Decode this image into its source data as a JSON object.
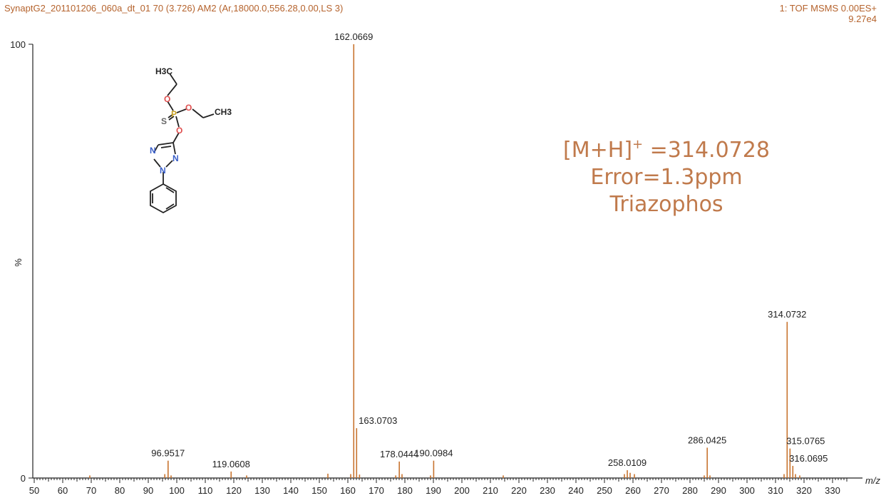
{
  "header": {
    "left": "SynaptG2_201101206_060a_dt_01 70 (3.726) AM2 (Ar,18000.0,556.28,0.00,LS 3)",
    "right_line1": "1: TOF MSMS 0.00ES+",
    "right_line2": "9.27e4"
  },
  "colors": {
    "peak": "#c8742f",
    "header": "#b5632d",
    "annotation": "#c07a4c",
    "axis": "#222222"
  },
  "annotation": {
    "line1_pre": "[M+H]",
    "line1_sup": "+",
    "line1_post": " =314.0728",
    "line2": "Error=1.3ppm",
    "line3": "Triazophos"
  },
  "structure": {
    "atoms": [
      "H3C",
      "CH3",
      "O",
      "O",
      "O",
      "P",
      "S",
      "N",
      "N",
      "N"
    ]
  },
  "chart_data": {
    "type": "bar",
    "xlabel": "m/z",
    "ylabel": "%",
    "xlim": [
      50,
      335
    ],
    "ylim": [
      0,
      100
    ],
    "x_ticks": [
      50,
      60,
      70,
      80,
      90,
      100,
      110,
      120,
      130,
      140,
      150,
      160,
      170,
      180,
      190,
      200,
      210,
      220,
      230,
      240,
      250,
      260,
      270,
      280,
      290,
      300,
      310,
      320,
      330
    ],
    "y_ticks": [
      0,
      100
    ],
    "labeled_peaks": [
      {
        "mz": 96.9517,
        "intensity": 4.0,
        "label": "96.9517"
      },
      {
        "mz": 119.0608,
        "intensity": 1.5,
        "label": "119.0608"
      },
      {
        "mz": 162.0669,
        "intensity": 100,
        "label": "162.0669"
      },
      {
        "mz": 163.0703,
        "intensity": 11.5,
        "label": "163.0703"
      },
      {
        "mz": 178.0444,
        "intensity": 3.8,
        "label": "178.0444"
      },
      {
        "mz": 190.0984,
        "intensity": 4.0,
        "label": "190.0984"
      },
      {
        "mz": 258.0109,
        "intensity": 1.8,
        "label": "258.0109"
      },
      {
        "mz": 286.0425,
        "intensity": 7.0,
        "label": "286.0425"
      },
      {
        "mz": 314.0732,
        "intensity": 36.0,
        "label": "314.0732"
      },
      {
        "mz": 315.0765,
        "intensity": 6.8,
        "label": "315.0765"
      },
      {
        "mz": 316.0695,
        "intensity": 2.8,
        "label": "316.0695"
      }
    ],
    "minor_peaks": [
      {
        "mz": 69.5,
        "intensity": 0.6
      },
      {
        "mz": 95.8,
        "intensity": 0.9
      },
      {
        "mz": 98.0,
        "intensity": 0.6
      },
      {
        "mz": 124.5,
        "intensity": 0.6
      },
      {
        "mz": 153.0,
        "intensity": 1.0
      },
      {
        "mz": 161.0,
        "intensity": 0.9
      },
      {
        "mz": 164.1,
        "intensity": 0.8
      },
      {
        "mz": 176.8,
        "intensity": 0.6
      },
      {
        "mz": 179.0,
        "intensity": 0.9
      },
      {
        "mz": 189.0,
        "intensity": 0.6
      },
      {
        "mz": 214.5,
        "intensity": 0.6
      },
      {
        "mz": 257.0,
        "intensity": 0.9
      },
      {
        "mz": 259.0,
        "intensity": 1.2
      },
      {
        "mz": 260.5,
        "intensity": 0.9
      },
      {
        "mz": 285.0,
        "intensity": 0.6
      },
      {
        "mz": 287.0,
        "intensity": 0.6
      },
      {
        "mz": 313.0,
        "intensity": 0.9
      },
      {
        "mz": 317.0,
        "intensity": 0.9
      },
      {
        "mz": 318.5,
        "intensity": 0.6
      }
    ]
  }
}
